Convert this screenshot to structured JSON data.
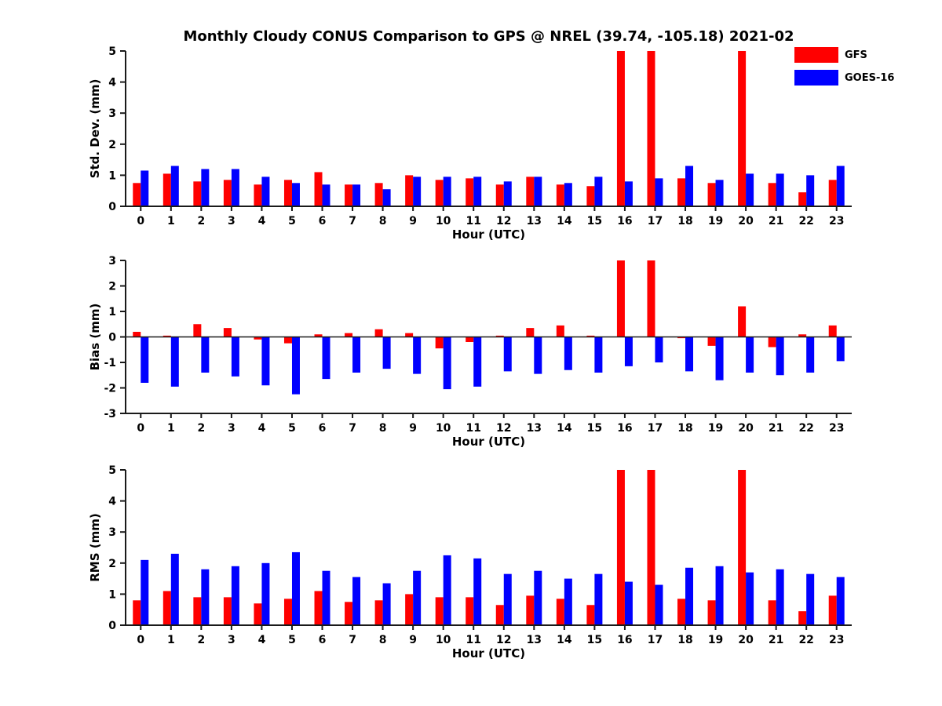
{
  "title": "Monthly Cloudy CONUS Comparison to GPS @ NREL (39.74, -105.18) 2021-02",
  "legend": {
    "items": [
      {
        "label": "GFS",
        "color": "#ff0000"
      },
      {
        "label": "GOES-16",
        "color": "#0000ff"
      }
    ]
  },
  "chart_data": [
    {
      "type": "bar",
      "title": "",
      "xlabel": "Hour (UTC)",
      "ylabel": "Std. Dev. (mm)",
      "ylim": [
        0,
        5
      ],
      "yticks": [
        0,
        1,
        2,
        3,
        4,
        5
      ],
      "categories": [
        "0",
        "1",
        "2",
        "3",
        "4",
        "5",
        "6",
        "7",
        "8",
        "9",
        "10",
        "11",
        "12",
        "13",
        "14",
        "15",
        "16",
        "17",
        "18",
        "19",
        "20",
        "21",
        "22",
        "23"
      ],
      "series": [
        {
          "name": "GFS",
          "color": "#ff0000",
          "values": [
            0.75,
            1.05,
            0.8,
            0.85,
            0.7,
            0.85,
            1.1,
            0.7,
            0.75,
            1.0,
            0.85,
            0.9,
            0.7,
            0.95,
            0.7,
            0.65,
            5,
            5,
            0.9,
            0.75,
            5,
            0.75,
            0.45,
            0.85
          ]
        },
        {
          "name": "GOES-16",
          "color": "#0000ff",
          "values": [
            1.15,
            1.3,
            1.2,
            1.2,
            0.95,
            0.75,
            0.7,
            0.7,
            0.55,
            0.95,
            0.95,
            0.95,
            0.8,
            0.95,
            0.75,
            0.95,
            0.8,
            0.9,
            1.3,
            0.85,
            1.05,
            1.05,
            1.0,
            1.3
          ]
        }
      ],
      "note": "GFS bars at hours 16, 17 and 20 are clipped at the axis maximum of 5"
    },
    {
      "type": "bar",
      "title": "",
      "xlabel": "Hour (UTC)",
      "ylabel": "Bias (mm)",
      "ylim": [
        -3,
        3
      ],
      "yticks": [
        -3,
        -2,
        -1,
        0,
        1,
        2,
        3
      ],
      "categories": [
        "0",
        "1",
        "2",
        "3",
        "4",
        "5",
        "6",
        "7",
        "8",
        "9",
        "10",
        "11",
        "12",
        "13",
        "14",
        "15",
        "16",
        "17",
        "18",
        "19",
        "20",
        "21",
        "22",
        "23"
      ],
      "series": [
        {
          "name": "GFS",
          "color": "#ff0000",
          "values": [
            0.2,
            0.05,
            0.5,
            0.35,
            -0.1,
            -0.25,
            0.1,
            0.15,
            0.3,
            0.15,
            -0.45,
            -0.2,
            0.05,
            0.35,
            0.45,
            0.05,
            3,
            3,
            -0.05,
            -0.35,
            1.2,
            -0.4,
            0.1,
            0.45
          ]
        },
        {
          "name": "GOES-16",
          "color": "#0000ff",
          "values": [
            -1.8,
            -1.95,
            -1.4,
            -1.55,
            -1.9,
            -2.25,
            -1.65,
            -1.4,
            -1.25,
            -1.45,
            -2.05,
            -1.95,
            -1.35,
            -1.45,
            -1.3,
            -1.4,
            -1.15,
            -1.0,
            -1.35,
            -1.7,
            -1.4,
            -1.5,
            -1.4,
            -0.95
          ]
        }
      ],
      "note": "GFS bars at hours 16 and 17 are clipped at the axis maximum of 3"
    },
    {
      "type": "bar",
      "title": "",
      "xlabel": "Hour (UTC)",
      "ylabel": "RMS (mm)",
      "ylim": [
        0,
        5
      ],
      "yticks": [
        0,
        1,
        2,
        3,
        4,
        5
      ],
      "categories": [
        "0",
        "1",
        "2",
        "3",
        "4",
        "5",
        "6",
        "7",
        "8",
        "9",
        "10",
        "11",
        "12",
        "13",
        "14",
        "15",
        "16",
        "17",
        "18",
        "19",
        "20",
        "21",
        "22",
        "23"
      ],
      "series": [
        {
          "name": "GFS",
          "color": "#ff0000",
          "values": [
            0.8,
            1.1,
            0.9,
            0.9,
            0.7,
            0.85,
            1.1,
            0.75,
            0.8,
            1.0,
            0.9,
            0.9,
            0.65,
            0.95,
            0.85,
            0.65,
            5,
            5,
            0.85,
            0.8,
            5,
            0.8,
            0.45,
            0.95
          ]
        },
        {
          "name": "GOES-16",
          "color": "#0000ff",
          "values": [
            2.1,
            2.3,
            1.8,
            1.9,
            2.0,
            2.35,
            1.75,
            1.55,
            1.35,
            1.75,
            2.25,
            2.15,
            1.65,
            1.75,
            1.5,
            1.65,
            1.4,
            1.3,
            1.85,
            1.9,
            1.7,
            1.8,
            1.65,
            1.55
          ]
        }
      ],
      "note": "GFS bars at hours 16, 17 and 20 are clipped at the axis maximum of 5"
    }
  ]
}
